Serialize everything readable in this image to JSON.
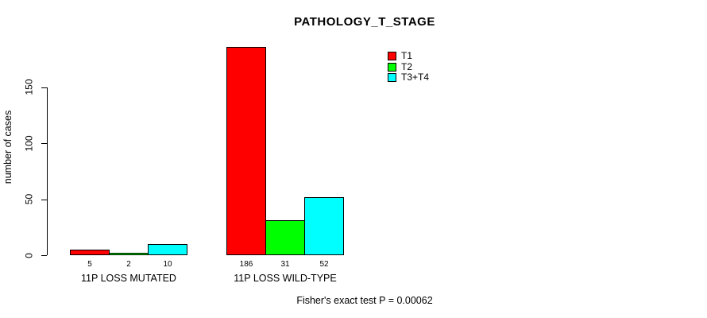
{
  "chart_data": {
    "type": "bar",
    "title": "PATHOLOGY_T_STAGE",
    "ylabel": "number of cases",
    "xlabel": "",
    "categories": [
      "11P LOSS MUTATED",
      "11P LOSS WILD-TYPE"
    ],
    "series": [
      {
        "name": "T1",
        "color": "#ff0000",
        "values": [
          5,
          186
        ]
      },
      {
        "name": "T2",
        "color": "#00ff00",
        "values": [
          2,
          31
        ]
      },
      {
        "name": "T3+T4",
        "color": "#00ffff",
        "values": [
          10,
          52
        ]
      }
    ],
    "yticks": [
      0,
      50,
      100,
      150
    ],
    "ylim": [
      0,
      190
    ],
    "grid": false,
    "legend_position": "top-right",
    "bar_value_labels_shown": true,
    "footer": "Fisher's exact test P = 0.00062"
  }
}
